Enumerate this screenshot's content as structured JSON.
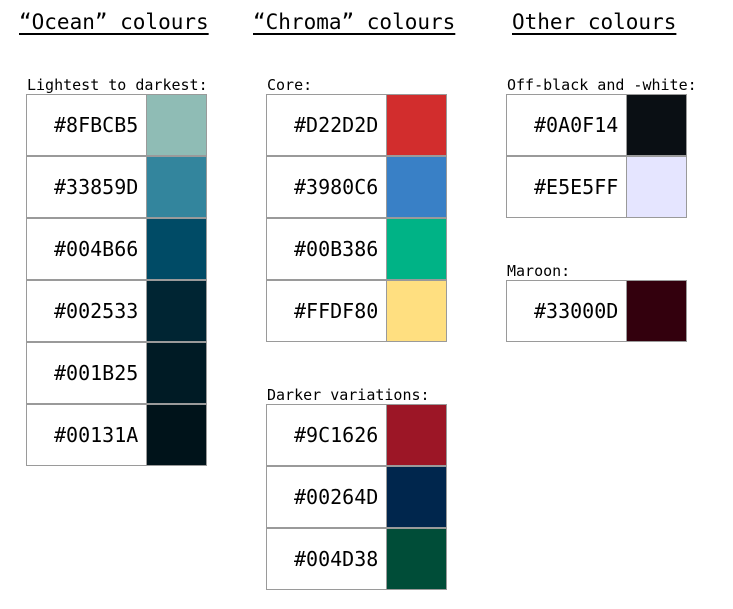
{
  "headings": {
    "ocean": "“Ocean” colours",
    "chroma": "“Chroma” colours",
    "other": "Other colours"
  },
  "labels": {
    "ocean": "Lightest to darkest:",
    "core": "Core:",
    "darker": "Darker variations:",
    "offbw": "Off-black and -white:",
    "maroon": "Maroon:"
  },
  "ocean": [
    "#8FBCB5",
    "#33859D",
    "#004B66",
    "#002533",
    "#001B25",
    "#00131A"
  ],
  "core": [
    "#D22D2D",
    "#3980C6",
    "#00B386",
    "#FFDF80"
  ],
  "darker": [
    "#9C1626",
    "#00264D",
    "#004D38"
  ],
  "offbw": [
    "#0A0F14",
    "#E5E5FF"
  ],
  "maroon": [
    "#33000D"
  ]
}
